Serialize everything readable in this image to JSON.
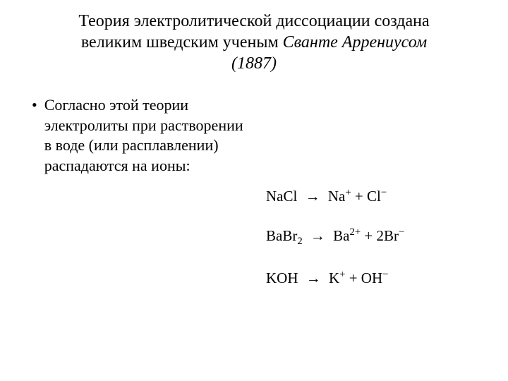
{
  "title": {
    "line1": "Теория электролитической диссоциации создана",
    "line2_prefix": "великим шведским ученым ",
    "line2_italic": "Сванте Аррениусом",
    "line3_italic": "(1887)"
  },
  "bullet_point": {
    "marker": "•",
    "text": "Согласно этой теории электролиты при растворении в воде (или расплавлении) распадаются на ионы:"
  },
  "equations": [
    {
      "lhs": "NaCl",
      "rhs_parts": [
        {
          "base": "Na",
          "sup": "+"
        },
        {
          "plain": " + "
        },
        {
          "base": "Cl",
          "sup": "−"
        }
      ]
    },
    {
      "lhs_parts": [
        {
          "base": "BaBr",
          "sub": "2"
        }
      ],
      "rhs_parts": [
        {
          "base": "Ba",
          "sup": "2+"
        },
        {
          "plain": " + "
        },
        {
          "base": "2Br",
          "sup": "−"
        }
      ]
    },
    {
      "lhs": "KOH",
      "rhs_parts": [
        {
          "base": "K",
          "sup": "+"
        },
        {
          "plain": " + "
        },
        {
          "base": "OH",
          "sup": "−"
        }
      ]
    }
  ],
  "arrow": "→",
  "colors": {
    "background": "#ffffff",
    "text": "#000000"
  },
  "fonts": {
    "title_size": 24,
    "body_size": 22,
    "equation_size": 21
  }
}
